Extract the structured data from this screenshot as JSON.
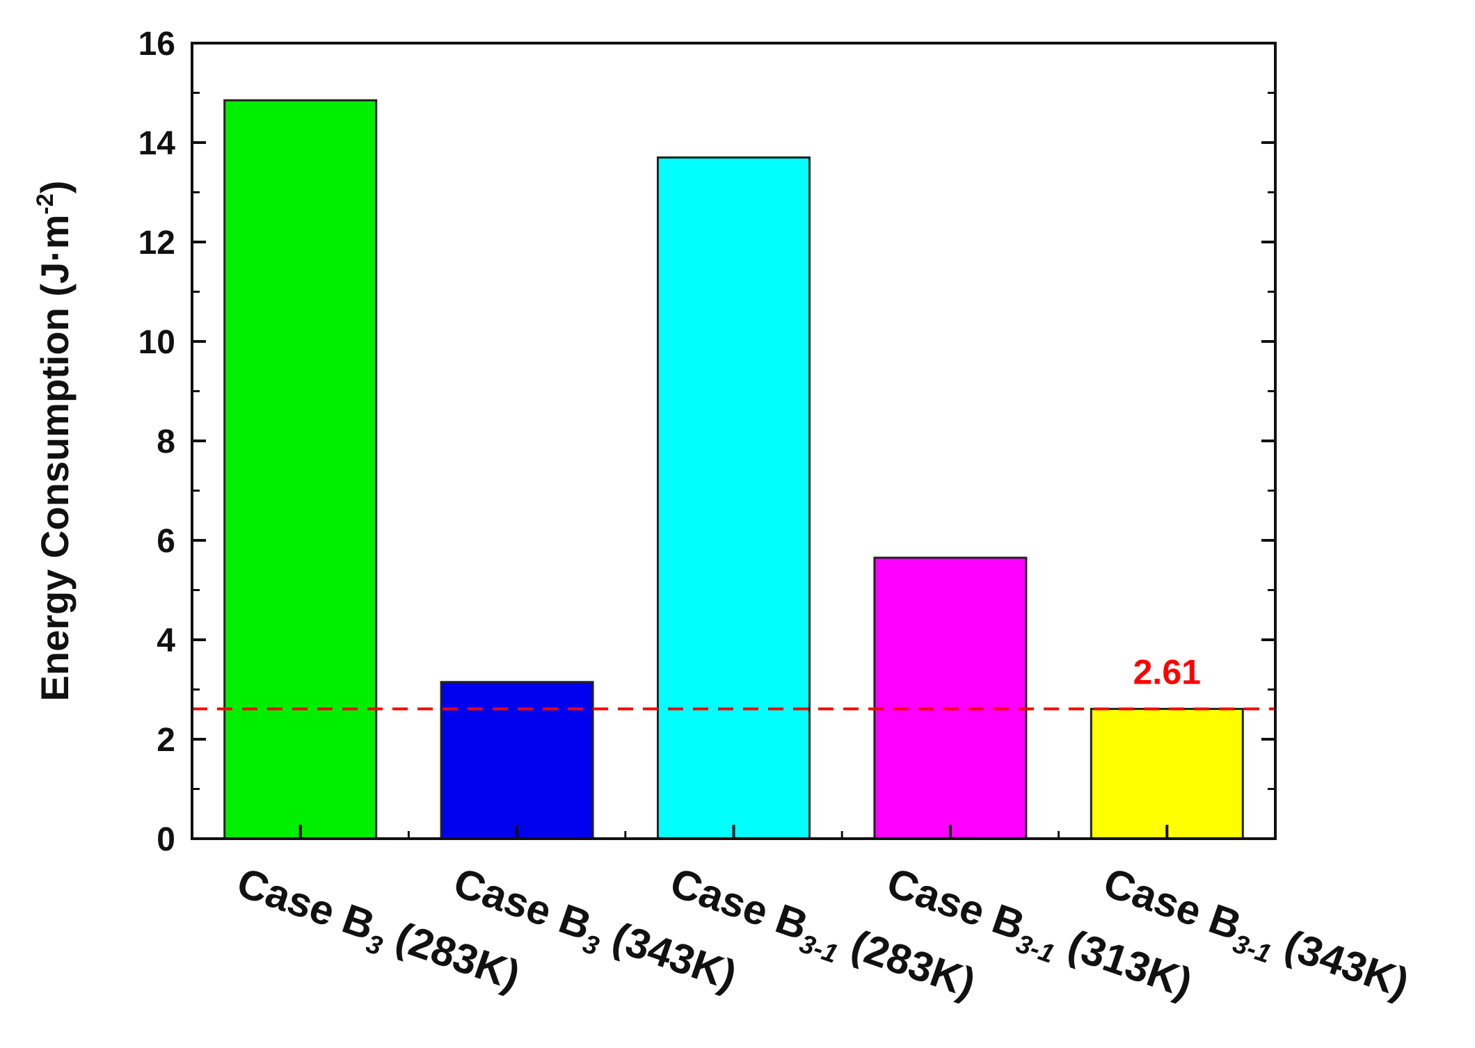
{
  "chart_data": {
    "type": "bar",
    "categories": [
      {
        "main": "Case B",
        "sub": "3",
        "suffix": " (283K)"
      },
      {
        "main": "Case B",
        "sub": "3",
        "suffix": " (343K)"
      },
      {
        "main": "Case B",
        "sub": "3-1",
        "suffix": " (283K)"
      },
      {
        "main": "Case B",
        "sub": "3-1",
        "suffix": " (313K)"
      },
      {
        "main": "Case B",
        "sub": "3-1",
        "suffix": " (343K)"
      }
    ],
    "values": [
      14.85,
      3.15,
      13.7,
      5.65,
      2.61
    ],
    "colors": [
      "#00ee00",
      "#0000ee",
      "#00ffff",
      "#ff00ff",
      "#ffff00"
    ],
    "xlabel": "",
    "ylabel": {
      "main": "Energy Consumption (J·m",
      "sup": "-2",
      "close": ")"
    },
    "ylim": [
      0,
      16
    ],
    "yticks": [
      "0",
      "2",
      "4",
      "6",
      "8",
      "10",
      "12",
      "14",
      "16"
    ],
    "reference_line": {
      "value": 2.61,
      "label": "2.61",
      "color": "#ff0000",
      "style": "dashed"
    },
    "grid": false
  }
}
